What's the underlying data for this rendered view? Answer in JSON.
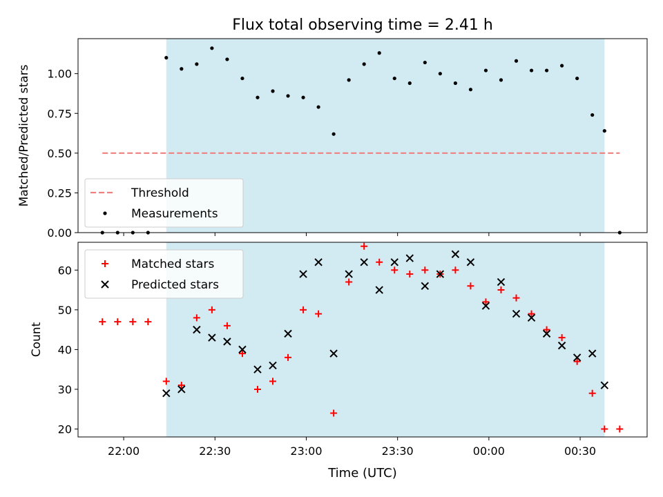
{
  "chart_data": {
    "title": "Flux total observing time = 2.41 h",
    "xlabel": "Time (UTC)",
    "x_ticks": [
      "22:00",
      "22:30",
      "23:00",
      "23:30",
      "00:00",
      "00:30"
    ],
    "shaded_interval": {
      "start": "22:14",
      "end": "00:38",
      "color": "#add8e6"
    },
    "panels": [
      {
        "type": "scatter",
        "ylabel": "Matched/Predicted stars",
        "ylim": [
          0,
          1.22
        ],
        "yticks": [
          "0.00",
          "0.25",
          "0.50",
          "0.75",
          "1.00"
        ],
        "legend_location": "lower-left",
        "threshold": {
          "name": "Threshold",
          "value": 0.5,
          "x_start": "21:53",
          "x_end": "00:43",
          "color": "#f08080"
        },
        "series": [
          {
            "name": "Measurements",
            "color": "#000000",
            "x": [
              "21:53",
              "21:58",
              "22:03",
              "22:08",
              "22:14",
              "22:19",
              "22:24",
              "22:29",
              "22:34",
              "22:39",
              "22:44",
              "22:49",
              "22:54",
              "22:59",
              "23:04",
              "23:09",
              "23:14",
              "23:19",
              "23:24",
              "23:29",
              "23:34",
              "23:39",
              "23:44",
              "23:49",
              "23:54",
              "23:59",
              "00:04",
              "00:09",
              "00:14",
              "00:19",
              "00:24",
              "00:29",
              "00:34",
              "00:38",
              "00:43"
            ],
            "y": [
              0.0,
              0.0,
              0.0,
              0.0,
              1.1,
              1.03,
              1.06,
              1.16,
              1.09,
              0.97,
              0.85,
              0.89,
              0.86,
              0.85,
              0.79,
              0.62,
              0.96,
              1.06,
              1.13,
              0.97,
              0.94,
              1.07,
              1.0,
              0.94,
              0.9,
              1.02,
              0.96,
              1.08,
              1.02,
              1.02,
              1.05,
              0.97,
              0.74,
              0.64,
              0.0
            ]
          }
        ]
      },
      {
        "type": "scatter",
        "ylabel": "Count",
        "ylim": [
          18,
          67
        ],
        "yticks": [
          "20",
          "30",
          "40",
          "50",
          "60"
        ],
        "legend_location": "upper-left",
        "series": [
          {
            "name": "Matched stars",
            "color": "#ff0000",
            "marker": "plus",
            "x": [
              "21:53",
              "21:58",
              "22:03",
              "22:08",
              "22:14",
              "22:19",
              "22:24",
              "22:29",
              "22:34",
              "22:39",
              "22:44",
              "22:49",
              "22:54",
              "22:59",
              "23:04",
              "23:09",
              "23:14",
              "23:19",
              "23:24",
              "23:29",
              "23:34",
              "23:39",
              "23:44",
              "23:49",
              "23:54",
              "23:59",
              "00:04",
              "00:09",
              "00:14",
              "00:19",
              "00:24",
              "00:29",
              "00:34",
              "00:38",
              "00:43"
            ],
            "y": [
              47,
              47,
              47,
              47,
              32,
              31,
              48,
              50,
              46,
              39,
              30,
              32,
              38,
              50,
              49,
              24,
              57,
              66,
              62,
              60,
              59,
              60,
              59,
              60,
              56,
              52,
              55,
              53,
              49,
              45,
              43,
              37,
              29,
              20,
              20
            ]
          },
          {
            "name": "Predicted stars",
            "color": "#000000",
            "marker": "x",
            "x": [
              "22:14",
              "22:19",
              "22:24",
              "22:29",
              "22:34",
              "22:39",
              "22:44",
              "22:49",
              "22:54",
              "22:59",
              "23:04",
              "23:09",
              "23:14",
              "23:19",
              "23:24",
              "23:29",
              "23:34",
              "23:39",
              "23:44",
              "23:49",
              "23:54",
              "23:59",
              "00:04",
              "00:09",
              "00:14",
              "00:19",
              "00:24",
              "00:29",
              "00:34",
              "00:38"
            ],
            "y": [
              29,
              30,
              45,
              43,
              42,
              40,
              35,
              36,
              44,
              59,
              62,
              39,
              59,
              62,
              55,
              62,
              63,
              56,
              59,
              64,
              62,
              51,
              57,
              49,
              48,
              44,
              41,
              38,
              39,
              31
            ]
          }
        ]
      }
    ]
  }
}
